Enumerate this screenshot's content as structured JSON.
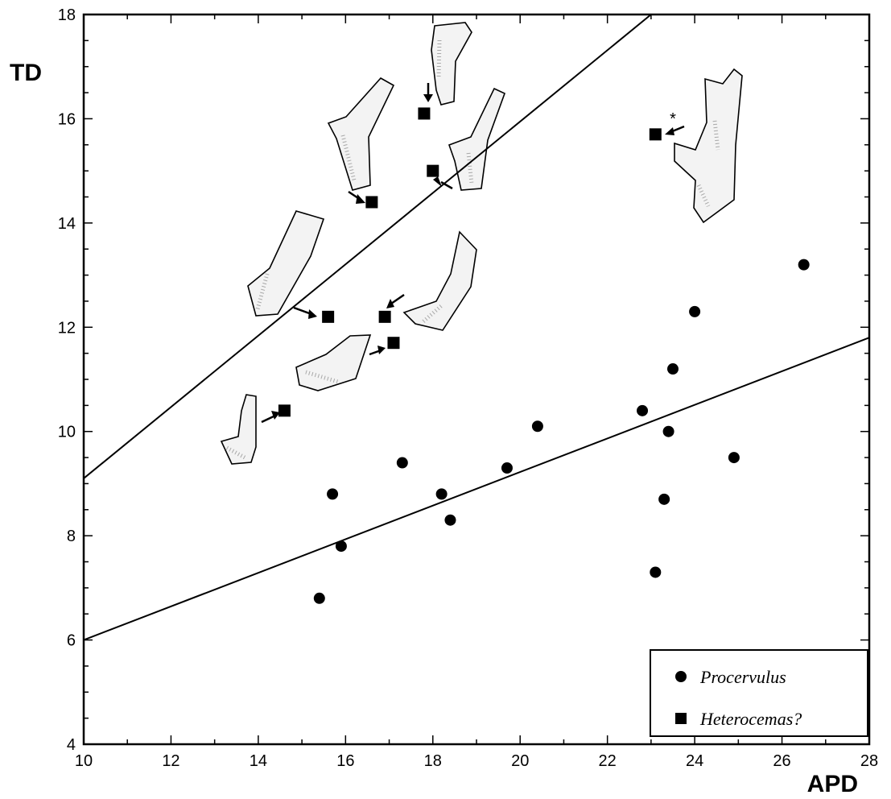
{
  "chart_data": {
    "type": "scatter",
    "xlabel": "APD",
    "ylabel": "TD",
    "xlim": [
      10,
      28
    ],
    "ylim": [
      4,
      18
    ],
    "x_ticks": [
      "10",
      "12",
      "14",
      "16",
      "18",
      "20",
      "22",
      "24",
      "26",
      "28"
    ],
    "y_ticks": [
      "4",
      "6",
      "8",
      "10",
      "12",
      "14",
      "16",
      "18"
    ],
    "grid": false,
    "legend_position": "bottom-right",
    "series": [
      {
        "name": "Procervulus",
        "marker": "circle",
        "color": "#000000",
        "points": [
          {
            "x": 15.4,
            "y": 6.8
          },
          {
            "x": 15.7,
            "y": 8.8
          },
          {
            "x": 15.9,
            "y": 7.8
          },
          {
            "x": 17.3,
            "y": 9.4
          },
          {
            "x": 18.2,
            "y": 8.8
          },
          {
            "x": 18.4,
            "y": 8.3
          },
          {
            "x": 19.7,
            "y": 9.3
          },
          {
            "x": 20.4,
            "y": 10.1
          },
          {
            "x": 22.8,
            "y": 10.4
          },
          {
            "x": 23.1,
            "y": 7.3
          },
          {
            "x": 23.3,
            "y": 8.7
          },
          {
            "x": 23.4,
            "y": 10.0
          },
          {
            "x": 23.5,
            "y": 11.2
          },
          {
            "x": 24.0,
            "y": 12.3
          },
          {
            "x": 24.9,
            "y": 9.5
          },
          {
            "x": 26.5,
            "y": 13.2
          }
        ]
      },
      {
        "name": "Heterocemas?",
        "marker": "square",
        "color": "#000000",
        "points": [
          {
            "x": 14.6,
            "y": 10.4
          },
          {
            "x": 15.6,
            "y": 12.2
          },
          {
            "x": 16.6,
            "y": 14.4
          },
          {
            "x": 16.9,
            "y": 12.2
          },
          {
            "x": 17.1,
            "y": 11.7
          },
          {
            "x": 17.8,
            "y": 16.1
          },
          {
            "x": 18.0,
            "y": 15.0
          },
          {
            "x": 23.1,
            "y": 15.7
          }
        ]
      }
    ],
    "lines": [
      {
        "x": [
          10,
          28
        ],
        "y": [
          6.0,
          11.8
        ]
      },
      {
        "x": [
          10,
          23.0
        ],
        "y": [
          9.1,
          18.0
        ]
      }
    ],
    "annotations": [
      {
        "text": "*",
        "x": 23.5,
        "y": 15.9
      }
    ]
  }
}
